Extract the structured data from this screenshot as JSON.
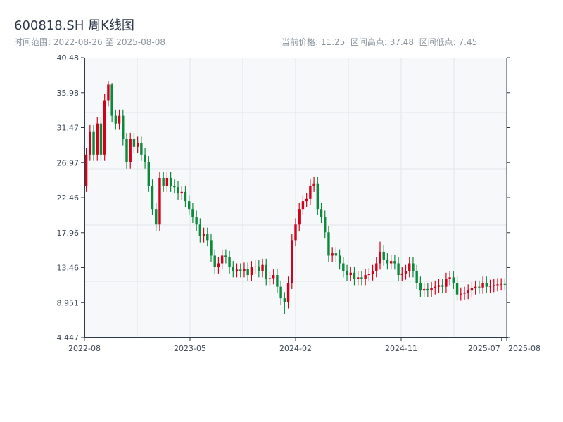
{
  "header": {
    "title": "600818.SH 周K线图",
    "range": "时间范围: 2022-08-26 至 2025-08-08",
    "stats": "当前价格: 11.25  区间高点: 37.48  区间低点: 7.45"
  },
  "chart_data": {
    "type": "candlestick",
    "title": "600818.SH 周K线图",
    "up_color": "#d0021b",
    "down_color": "#0a8a3a",
    "ylim": [
      4.447,
      40.48
    ],
    "yticks": [
      "40.48",
      "35.98",
      "31.47",
      "26.97",
      "22.46",
      "17.96",
      "13.46",
      "8.951",
      "4.447"
    ],
    "xticks": [
      {
        "label": "2022-08",
        "pos": 0
      },
      {
        "label": "2023-05",
        "pos": 0.25
      },
      {
        "label": "2024-02",
        "pos": 0.5
      },
      {
        "label": "2024-11",
        "pos": 0.75
      },
      {
        "label": "2025-07",
        "pos": 0.988
      },
      {
        "label": "2025-08",
        "pos": 1
      }
    ],
    "candles": [
      [
        24,
        28.8,
        23.2,
        28
      ],
      [
        28,
        31.8,
        27.2,
        31
      ],
      [
        31,
        31.8,
        27.2,
        28
      ],
      [
        28,
        32.8,
        27.2,
        32
      ],
      [
        32,
        32.8,
        27.2,
        28
      ],
      [
        28,
        35.8,
        27.2,
        35
      ],
      [
        35,
        37.48,
        34.2,
        37
      ],
      [
        37,
        37.2,
        32.2,
        33
      ],
      [
        33,
        33.8,
        31.2,
        32
      ],
      [
        32,
        33.8,
        31.2,
        33
      ],
      [
        33,
        33.8,
        29.2,
        30
      ],
      [
        30,
        30.8,
        26.2,
        27
      ],
      [
        27,
        30.8,
        26.2,
        30
      ],
      [
        30,
        30.8,
        28.2,
        29
      ],
      [
        29,
        30.3,
        28.2,
        29.5
      ],
      [
        29.5,
        30.3,
        27.2,
        28
      ],
      [
        28,
        28.8,
        26.2,
        27
      ],
      [
        27,
        27.8,
        23.2,
        24
      ],
      [
        24,
        24.8,
        20.2,
        21
      ],
      [
        21,
        21.8,
        18.2,
        19
      ],
      [
        19,
        25.8,
        18.2,
        25
      ],
      [
        25,
        25.8,
        23.2,
        24
      ],
      [
        24,
        25.8,
        23.2,
        25
      ],
      [
        25,
        25.8,
        23.2,
        24
      ],
      [
        24,
        24.8,
        23,
        23.8
      ],
      [
        23.8,
        24.6,
        22.2,
        23
      ],
      [
        23,
        24,
        22.2,
        23.2
      ],
      [
        23.2,
        24,
        21.2,
        22
      ],
      [
        22,
        22.8,
        20.2,
        21
      ],
      [
        21,
        21.8,
        19.2,
        20
      ],
      [
        20,
        20.8,
        18.2,
        19
      ],
      [
        19,
        19.8,
        16.7,
        17.5
      ],
      [
        17.5,
        18.6,
        16.7,
        17.8
      ],
      [
        17.8,
        18.6,
        16.2,
        17
      ],
      [
        17,
        17.8,
        14.2,
        15
      ],
      [
        15,
        15.8,
        12.7,
        13.5
      ],
      [
        13.5,
        14.8,
        12.7,
        14
      ],
      [
        14,
        15.8,
        13.2,
        15
      ],
      [
        15,
        15.8,
        14,
        14.8
      ],
      [
        14.8,
        15.6,
        12.7,
        13.5
      ],
      [
        13.5,
        14.3,
        12.2,
        13
      ],
      [
        13,
        14,
        12.2,
        13.2
      ],
      [
        13.2,
        14,
        12.2,
        13
      ],
      [
        13,
        14.1,
        12.2,
        13.3
      ],
      [
        13.3,
        14.1,
        11.7,
        12.5
      ],
      [
        12.5,
        14.3,
        11.7,
        13.5
      ],
      [
        13.5,
        14.4,
        12.7,
        13.6
      ],
      [
        13.6,
        14.4,
        12.2,
        13
      ],
      [
        13,
        14.6,
        12.2,
        13.8
      ],
      [
        13.8,
        14.6,
        11.2,
        12
      ],
      [
        12,
        12.9,
        11.2,
        12.1
      ],
      [
        12.1,
        13.3,
        11.3,
        12.5
      ],
      [
        12.5,
        13.3,
        10.2,
        11
      ],
      [
        11,
        11.8,
        8.7,
        9.5
      ],
      [
        9.5,
        10.3,
        7.45,
        9
      ],
      [
        9,
        12.3,
        8.2,
        11.5
      ],
      [
        11.5,
        17.8,
        10.7,
        17
      ],
      [
        17,
        19.8,
        16.2,
        19
      ],
      [
        19,
        21.8,
        18.2,
        21
      ],
      [
        21,
        22.8,
        20.2,
        22
      ],
      [
        22,
        23.1,
        21.2,
        22.3
      ],
      [
        22.3,
        24.8,
        21.5,
        24
      ],
      [
        24,
        25.1,
        23.2,
        24.3
      ],
      [
        24.3,
        25.1,
        20.2,
        21
      ],
      [
        21,
        21.8,
        19.2,
        20
      ],
      [
        20,
        20.8,
        17.2,
        18
      ],
      [
        18,
        18.8,
        14.2,
        15
      ],
      [
        15,
        16.1,
        14.2,
        15.3
      ],
      [
        15.3,
        16.1,
        14.2,
        15
      ],
      [
        15,
        15.8,
        13.2,
        14
      ],
      [
        14,
        14.8,
        12.2,
        13
      ],
      [
        13,
        13.8,
        11.7,
        12.5
      ],
      [
        12.5,
        13.6,
        11.7,
        12.8
      ],
      [
        12.8,
        13.6,
        11.2,
        12
      ],
      [
        12,
        13,
        11.2,
        12.2
      ],
      [
        12.2,
        13,
        11.2,
        12
      ],
      [
        12,
        13.3,
        11.2,
        12.5
      ],
      [
        12.5,
        13.4,
        11.7,
        12.6
      ],
      [
        12.6,
        13.8,
        11.8,
        13
      ],
      [
        13,
        14.8,
        12.2,
        14
      ],
      [
        14,
        16.8,
        13.2,
        15.5
      ],
      [
        15.5,
        16.3,
        13.7,
        14.5
      ],
      [
        14.5,
        15.3,
        13.2,
        14
      ],
      [
        14,
        15.1,
        13.2,
        14.3
      ],
      [
        14.3,
        15.1,
        13.2,
        14
      ],
      [
        14,
        14.8,
        11.7,
        12.5
      ],
      [
        12.5,
        13.5,
        11.7,
        12.7
      ],
      [
        12.7,
        13.8,
        11.9,
        13
      ],
      [
        13,
        14.8,
        12.2,
        14
      ],
      [
        14,
        14.8,
        12.2,
        13
      ],
      [
        13,
        13.8,
        10.7,
        11.5
      ],
      [
        11.5,
        12.3,
        9.7,
        10.5
      ],
      [
        10.5,
        11.5,
        9.7,
        10.7
      ],
      [
        10.7,
        11.5,
        9.7,
        10.5
      ],
      [
        10.5,
        11.6,
        9.7,
        10.8
      ],
      [
        10.8,
        11.8,
        10,
        11
      ],
      [
        11,
        12,
        10.2,
        11.2
      ],
      [
        11.2,
        12,
        10.2,
        11
      ],
      [
        11,
        12.8,
        10.2,
        12
      ],
      [
        12,
        13,
        11.2,
        12.2
      ],
      [
        12.2,
        13,
        10.7,
        11.5
      ],
      [
        11.5,
        12.3,
        9.2,
        10
      ],
      [
        10,
        10.9,
        9.2,
        10.1
      ],
      [
        10.1,
        11,
        9.3,
        10.2
      ],
      [
        10.2,
        11.3,
        9.4,
        10.5
      ],
      [
        10.5,
        11.6,
        9.7,
        10.8
      ],
      [
        10.8,
        11.8,
        10,
        11
      ],
      [
        11,
        11.8,
        10.1,
        10.9
      ],
      [
        10.9,
        12.3,
        10.1,
        11.5
      ],
      [
        11.5,
        12.3,
        10.2,
        11
      ],
      [
        11,
        11.9,
        10.2,
        11.1
      ],
      [
        11.1,
        12,
        10.3,
        11.2
      ],
      [
        11.2,
        12.1,
        10.4,
        11.3
      ],
      [
        11.3,
        12.1,
        10.5,
        11.35
      ],
      [
        11.35,
        12.1,
        10.5,
        11.25
      ]
    ]
  }
}
